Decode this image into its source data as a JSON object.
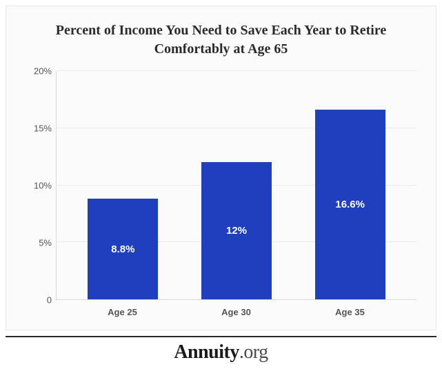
{
  "chart": {
    "type": "bar",
    "title": "Percent of Income You Need to Save Each Year to Retire Comfortably at Age 65",
    "title_fontsize": 20,
    "title_color": "#2b2b2b",
    "background_color": "#fbfbfc",
    "card_border_color": "#e6e6e8",
    "axis_color": "#d8d8dc",
    "grid_color": "#eceaee",
    "tick_label_color": "#555555",
    "tick_fontsize": 13,
    "xtick_fontsize": 13,
    "ylim": [
      0,
      20
    ],
    "ytick_step": 5,
    "yticks": [
      {
        "value": 0,
        "label": "0"
      },
      {
        "value": 5,
        "label": "5%"
      },
      {
        "value": 10,
        "label": "10%"
      },
      {
        "value": 15,
        "label": "15%"
      },
      {
        "value": 20,
        "label": "20%"
      }
    ],
    "bar_width_pct": 62,
    "bar_label_color": "#ffffff",
    "bar_label_fontsize": 15,
    "bars": [
      {
        "category": "Age 25",
        "value": 8.8,
        "label": "8.8%",
        "color": "#1f3fbf"
      },
      {
        "category": "Age 30",
        "value": 12.0,
        "label": "12%",
        "color": "#1f3fbf"
      },
      {
        "category": "Age 35",
        "value": 16.6,
        "label": "16.6%",
        "color": "#1f3fbf"
      }
    ]
  },
  "brand": {
    "name": "Annuity",
    "suffix": ".org",
    "fontsize": 28,
    "name_color": "#1a1a1a",
    "suffix_color": "#4a4a4a",
    "rule_color": "#2b2b2b"
  }
}
